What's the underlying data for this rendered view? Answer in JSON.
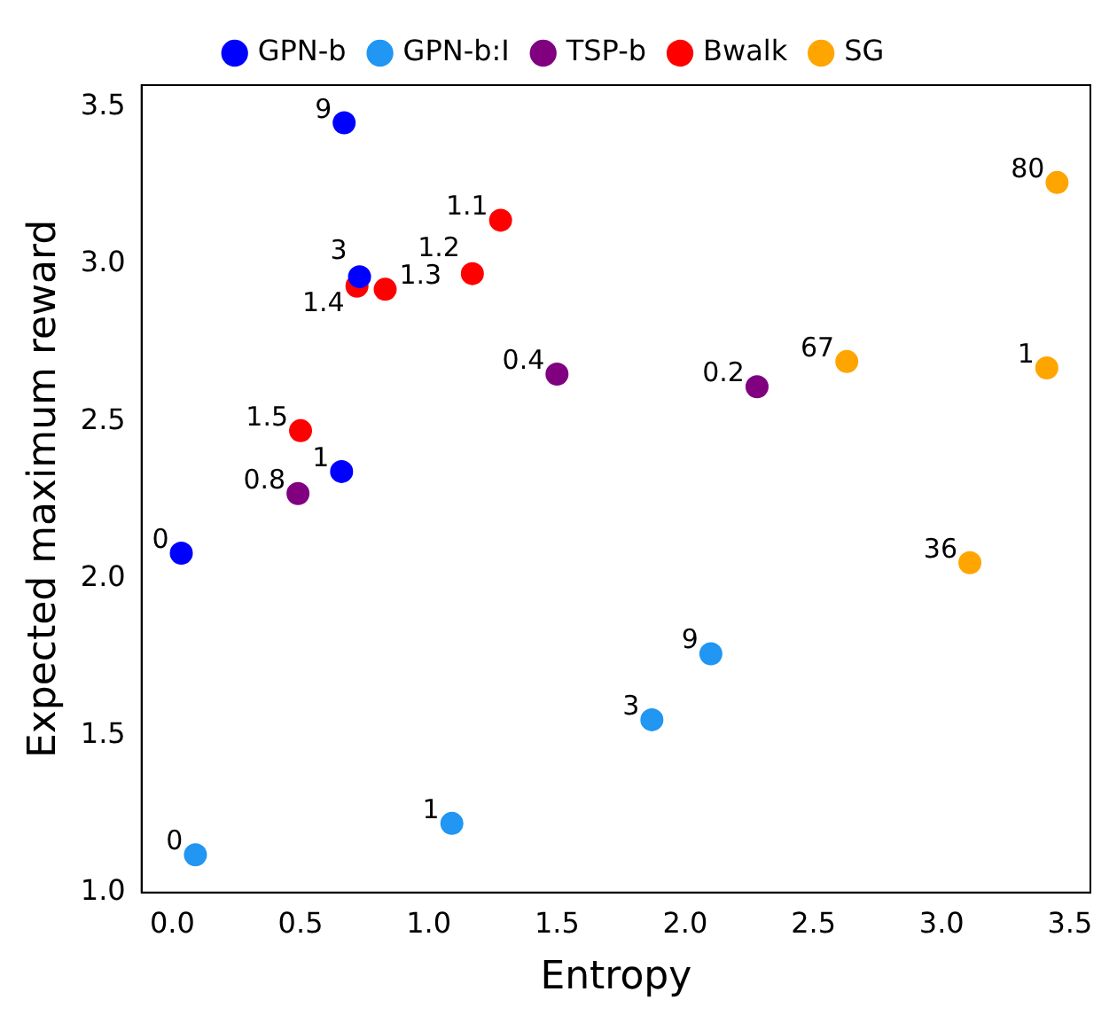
{
  "chart_data": {
    "type": "scatter",
    "xlabel": "Entropy",
    "ylabel": "Expected maximum reward",
    "xlim": [
      -0.12,
      3.58
    ],
    "ylim": [
      1.0,
      3.57
    ],
    "xticks": [
      {
        "value": 0,
        "label": "0.0"
      },
      {
        "value": 0.5,
        "label": "0.5"
      },
      {
        "value": 1,
        "label": "1.0"
      },
      {
        "value": 1.5,
        "label": "1.5"
      },
      {
        "value": 2,
        "label": "2.0"
      },
      {
        "value": 2.5,
        "label": "2.5"
      },
      {
        "value": 3,
        "label": "3.0"
      },
      {
        "value": 3.5,
        "label": "3.5"
      }
    ],
    "yticks": [
      {
        "value": 1,
        "label": "1.0"
      },
      {
        "value": 1.5,
        "label": "1.5"
      },
      {
        "value": 2,
        "label": "2.0"
      },
      {
        "value": 2.5,
        "label": "2.5"
      },
      {
        "value": 3,
        "label": "3.0"
      },
      {
        "value": 3.5,
        "label": "3.5"
      }
    ],
    "grid": false,
    "legend": "top",
    "marker": "circle",
    "series": [
      {
        "name": "GPN-b",
        "color": "#0000ff",
        "x": [
          0.035,
          0.66,
          0.73,
          0.67
        ],
        "values": [
          2.08,
          2.34,
          2.96,
          3.45
        ]
      },
      {
        "name": "GPN-b:I",
        "color": "#2196f3",
        "x": [
          0.09,
          1.09,
          1.87,
          2.1
        ],
        "values": [
          1.12,
          1.22,
          1.55,
          1.76
        ]
      },
      {
        "name": "TSP-b",
        "color": "#800080",
        "x": [
          0.49,
          1.5,
          2.28
        ],
        "values": [
          2.27,
          2.65,
          2.61
        ]
      },
      {
        "name": "Bwalk",
        "color": "#ff0000",
        "x": [
          0.5,
          0.72,
          0.83,
          1.17,
          1.28
        ],
        "values": [
          2.47,
          2.93,
          2.92,
          2.97,
          3.14
        ]
      },
      {
        "name": "SG",
        "color": "#ffa500",
        "x": [
          2.63,
          3.41,
          3.11,
          3.45
        ],
        "values": [
          2.69,
          2.67,
          2.05,
          3.26
        ]
      }
    ],
    "annotations": [
      {
        "text": "0",
        "x": 0.035,
        "y": 2.08
      },
      {
        "text": "1",
        "x": 0.66,
        "y": 2.34
      },
      {
        "text": "3",
        "x": 0.73,
        "y": 2.96
      },
      {
        "text": "9",
        "x": 0.67,
        "y": 3.45
      },
      {
        "text": "0",
        "x": 0.09,
        "y": 1.12
      },
      {
        "text": "1",
        "x": 1.09,
        "y": 1.22
      },
      {
        "text": "3",
        "x": 1.87,
        "y": 1.55
      },
      {
        "text": "9",
        "x": 2.1,
        "y": 1.76
      },
      {
        "text": "0.8",
        "x": 0.49,
        "y": 2.27
      },
      {
        "text": "0.4",
        "x": 1.5,
        "y": 2.65
      },
      {
        "text": "0.2",
        "x": 2.28,
        "y": 2.61
      },
      {
        "text": "1.5",
        "x": 0.5,
        "y": 2.47
      },
      {
        "text": "1.4",
        "x": 0.72,
        "y": 2.93
      },
      {
        "text": "1.3",
        "x": 0.83,
        "y": 2.92
      },
      {
        "text": "1.2",
        "x": 1.17,
        "y": 2.97
      },
      {
        "text": "1.1",
        "x": 1.28,
        "y": 3.14
      },
      {
        "text": "67",
        "x": 2.63,
        "y": 2.69
      },
      {
        "text": "1",
        "x": 3.41,
        "y": 2.67
      },
      {
        "text": "36",
        "x": 3.11,
        "y": 2.05
      },
      {
        "text": "80",
        "x": 3.45,
        "y": 3.26
      }
    ]
  }
}
